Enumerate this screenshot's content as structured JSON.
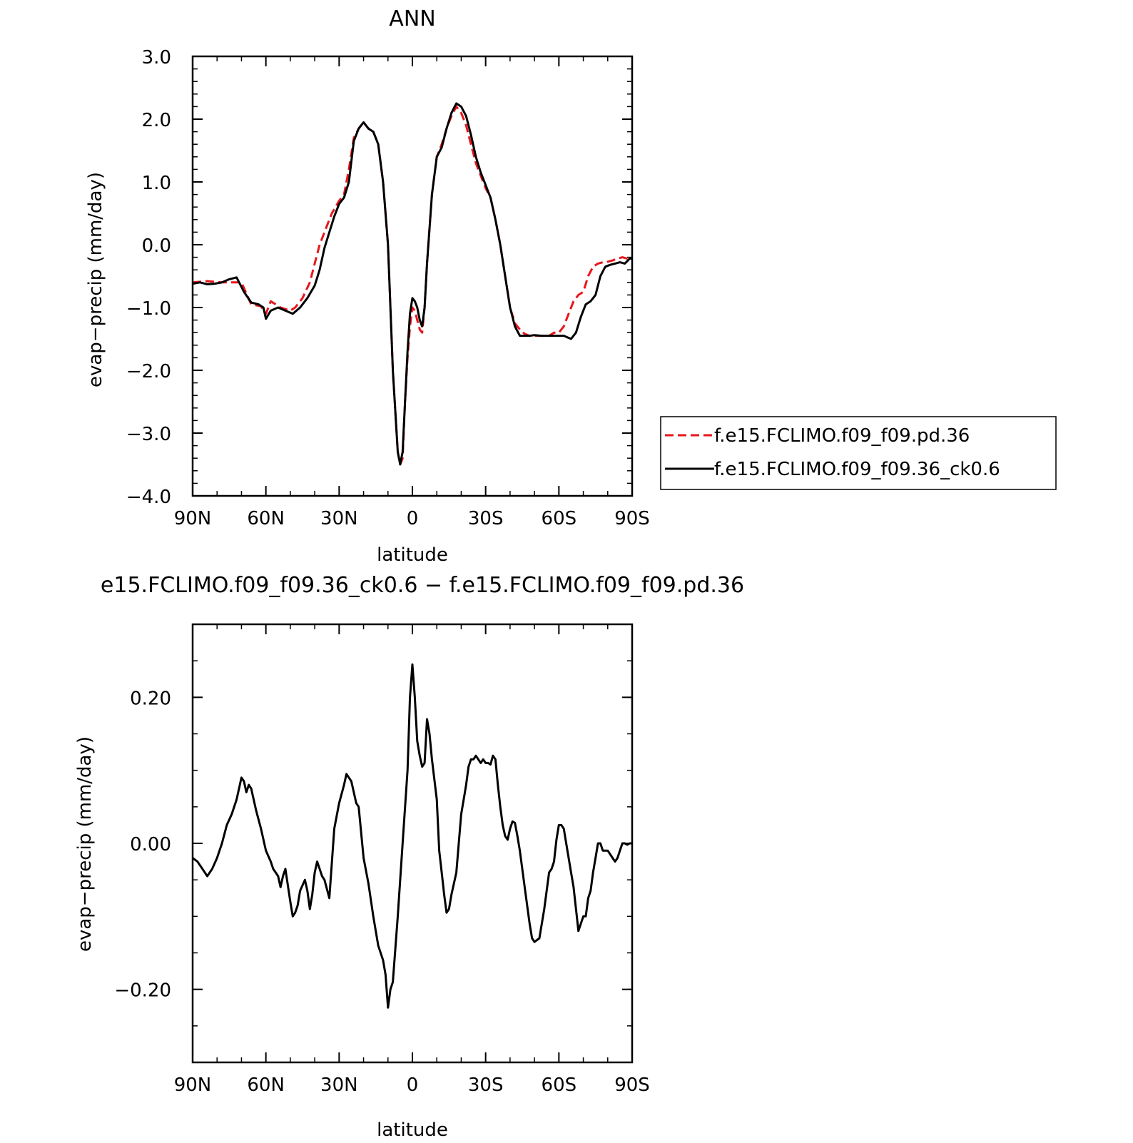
{
  "chart_data": [
    {
      "type": "line",
      "title": "ANN",
      "xlabel": "latitude",
      "ylabel": "evap−precip (mm/day)",
      "xlim": [
        90,
        -90
      ],
      "ylim": [
        -4.0,
        3.0
      ],
      "x_ticks": [
        90,
        60,
        30,
        0,
        -30,
        -60,
        -90
      ],
      "x_tick_labels": [
        "90N",
        "60N",
        "30N",
        "0",
        "30S",
        "60S",
        "90S"
      ],
      "y_ticks": [
        3.0,
        2.0,
        1.0,
        0.0,
        -1.0,
        -2.0,
        -3.0,
        -4.0
      ],
      "y_tick_labels": [
        "3.0",
        "2.0",
        "1.0",
        "0.0",
        "−1.0",
        "−2.0",
        "−3.0",
        "−4.0"
      ],
      "grid": false,
      "legend": "right",
      "series": [
        {
          "name": "f.e15.FCLIMO.f09_f09.pd.36",
          "color": "#e8161b",
          "dash": "dashed",
          "x": [
            90,
            84,
            78,
            70,
            66,
            62,
            60,
            58,
            54,
            50,
            48,
            45,
            42,
            40,
            38,
            35,
            33,
            30,
            28,
            26,
            24,
            22,
            20,
            18,
            16,
            14,
            12,
            10,
            8,
            6,
            5,
            4,
            3,
            2,
            1,
            0,
            -1,
            -2,
            -3,
            -4,
            -5,
            -6,
            -8,
            -10,
            -12,
            -14,
            -16,
            -18,
            -20,
            -22,
            -24,
            -26,
            -28,
            -30,
            -32,
            -34,
            -36,
            -38,
            -40,
            -42,
            -44,
            -46,
            -48,
            -50,
            -53,
            -56,
            -58,
            -60,
            -62,
            -64,
            -66,
            -68,
            -70,
            -72,
            -74,
            -76,
            -78,
            -80,
            -82,
            -84,
            -86,
            -88,
            -90
          ],
          "y": [
            -0.6,
            -0.58,
            -0.6,
            -0.6,
            -0.95,
            -0.98,
            -1.1,
            -0.9,
            -1.0,
            -1.05,
            -1.0,
            -0.85,
            -0.6,
            -0.3,
            0.0,
            0.3,
            0.5,
            0.7,
            0.8,
            1.2,
            1.7,
            1.85,
            1.95,
            1.85,
            1.8,
            1.6,
            1.0,
            0.0,
            -2.0,
            -3.3,
            -3.5,
            -3.4,
            -2.5,
            -1.8,
            -1.3,
            -1.0,
            -1.05,
            -1.2,
            -1.35,
            -1.4,
            -1.0,
            -0.3,
            0.8,
            1.4,
            1.6,
            1.85,
            2.05,
            2.2,
            2.1,
            1.9,
            1.6,
            1.3,
            1.1,
            0.9,
            0.75,
            0.4,
            0.0,
            -0.5,
            -1.0,
            -1.25,
            -1.35,
            -1.42,
            -1.45,
            -1.45,
            -1.45,
            -1.45,
            -1.4,
            -1.4,
            -1.3,
            -1.1,
            -0.9,
            -0.8,
            -0.75,
            -0.5,
            -0.35,
            -0.3,
            -0.28,
            -0.27,
            -0.25,
            -0.22,
            -0.2,
            -0.22,
            -0.22
          ]
        },
        {
          "name": "f.e15.FCLIMO.f09_f09.36_ck0.6",
          "color": "#000000",
          "dash": "solid",
          "x": [
            90,
            87,
            84,
            81,
            78,
            75,
            72,
            69,
            66,
            63,
            61,
            60,
            58,
            55,
            52,
            49,
            46,
            43,
            40,
            38,
            36,
            34,
            32,
            30,
            28,
            26,
            24,
            22,
            20,
            18,
            16,
            14,
            12,
            10,
            8,
            6,
            5,
            4,
            3,
            2,
            1,
            0,
            -1,
            -2,
            -3,
            -4,
            -5,
            -6,
            -8,
            -10,
            -12,
            -14,
            -16,
            -18,
            -20,
            -22,
            -24,
            -26,
            -28,
            -30,
            -32,
            -34,
            -36,
            -38,
            -40,
            -42,
            -44,
            -46,
            -48,
            -50,
            -53,
            -56,
            -59,
            -62,
            -65,
            -67,
            -69,
            -71,
            -73,
            -75,
            -77,
            -79,
            -81,
            -83,
            -85,
            -87,
            -89,
            -90
          ],
          "y": [
            -0.62,
            -0.6,
            -0.63,
            -0.62,
            -0.6,
            -0.55,
            -0.52,
            -0.75,
            -0.92,
            -0.95,
            -1.0,
            -1.18,
            -1.05,
            -1.0,
            -1.05,
            -1.1,
            -1.0,
            -0.85,
            -0.65,
            -0.4,
            -0.05,
            0.2,
            0.45,
            0.65,
            0.75,
            1.0,
            1.65,
            1.85,
            1.95,
            1.85,
            1.8,
            1.6,
            1.0,
            0.0,
            -2.0,
            -3.3,
            -3.5,
            -3.3,
            -2.5,
            -1.7,
            -1.1,
            -0.85,
            -0.9,
            -1.0,
            -1.2,
            -1.3,
            -1.0,
            -0.3,
            0.8,
            1.4,
            1.55,
            1.85,
            2.1,
            2.25,
            2.2,
            2.05,
            1.75,
            1.4,
            1.15,
            0.95,
            0.75,
            0.4,
            0.0,
            -0.5,
            -1.0,
            -1.3,
            -1.45,
            -1.45,
            -1.45,
            -1.44,
            -1.45,
            -1.45,
            -1.45,
            -1.45,
            -1.5,
            -1.4,
            -1.15,
            -0.95,
            -0.9,
            -0.8,
            -0.5,
            -0.35,
            -0.32,
            -0.3,
            -0.28,
            -0.3,
            -0.22,
            -0.22
          ]
        }
      ]
    },
    {
      "type": "line",
      "title": "e15.FCLIMO.f09_f09.36_ck0.6 − f.e15.FCLIMO.f09_f09.pd.36",
      "xlabel": "latitude",
      "ylabel": "evap−precip (mm/day)",
      "xlim": [
        90,
        -90
      ],
      "ylim": [
        -0.3,
        0.3
      ],
      "x_ticks": [
        90,
        60,
        30,
        0,
        -30,
        -60,
        -90
      ],
      "x_tick_labels": [
        "90N",
        "60N",
        "30N",
        "0",
        "30S",
        "60S",
        "90S"
      ],
      "y_ticks": [
        0.2,
        0.0,
        -0.2
      ],
      "y_tick_labels": [
        "0.20",
        "0.00",
        "−0.20"
      ],
      "grid": false,
      "series": [
        {
          "color": "#000000",
          "dash": "solid",
          "x": [
            90,
            88,
            86,
            84,
            82,
            80,
            78,
            76,
            74,
            72,
            71,
            70,
            69,
            68,
            67,
            66,
            64,
            62,
            60,
            58,
            57,
            56,
            55,
            54,
            53,
            52,
            50,
            49,
            48,
            47,
            46,
            44,
            43,
            42,
            41,
            40,
            39,
            38,
            37,
            36,
            34,
            32,
            30,
            28,
            27,
            26,
            25,
            24,
            23,
            22,
            20,
            18,
            16,
            14,
            12,
            11,
            10,
            9,
            8,
            6,
            4,
            2,
            1,
            0,
            -1,
            -2,
            -3,
            -4,
            -5,
            -6,
            -7,
            -8,
            -10,
            -11,
            -12,
            -13,
            -14,
            -15,
            -16,
            -17,
            -18,
            -19,
            -20,
            -21,
            -22,
            -23,
            -24,
            -25,
            -26,
            -27,
            -28,
            -29,
            -30,
            -31,
            -32,
            -33,
            -34,
            -35,
            -36,
            -37,
            -38,
            -39,
            -40,
            -41,
            -42,
            -43,
            -44,
            -46,
            -48,
            -49,
            -50,
            -52,
            -54,
            -55,
            -56,
            -57,
            -58,
            -59,
            -60,
            -61,
            -62,
            -63,
            -64,
            -65,
            -66,
            -67,
            -68,
            -69,
            -70,
            -71,
            -72,
            -73,
            -74,
            -75,
            -76,
            -77,
            -78,
            -79,
            -80,
            -81,
            -82,
            -83,
            -84,
            -85,
            -86,
            -87,
            -88,
            -89,
            -90
          ],
          "y": [
            -0.02,
            -0.025,
            -0.035,
            -0.045,
            -0.035,
            -0.02,
            0.0,
            0.025,
            0.04,
            0.06,
            0.075,
            0.09,
            0.085,
            0.07,
            0.08,
            0.075,
            0.045,
            0.02,
            -0.01,
            -0.025,
            -0.035,
            -0.04,
            -0.045,
            -0.06,
            -0.045,
            -0.035,
            -0.08,
            -0.1,
            -0.095,
            -0.085,
            -0.065,
            -0.05,
            -0.065,
            -0.09,
            -0.07,
            -0.04,
            -0.025,
            -0.035,
            -0.045,
            -0.05,
            -0.075,
            0.02,
            0.055,
            0.08,
            0.095,
            0.09,
            0.085,
            0.07,
            0.055,
            0.05,
            -0.02,
            -0.055,
            -0.1,
            -0.14,
            -0.16,
            -0.18,
            -0.225,
            -0.2,
            -0.19,
            -0.1,
            0.0,
            0.1,
            0.2,
            0.245,
            0.2,
            0.14,
            0.12,
            0.105,
            0.11,
            0.17,
            0.15,
            0.115,
            0.06,
            -0.01,
            -0.04,
            -0.07,
            -0.095,
            -0.09,
            -0.07,
            -0.055,
            -0.04,
            0.0,
            0.04,
            0.06,
            0.08,
            0.105,
            0.115,
            0.115,
            0.12,
            0.115,
            0.11,
            0.115,
            0.11,
            0.11,
            0.108,
            0.12,
            0.115,
            0.08,
            0.05,
            0.025,
            0.01,
            0.005,
            0.02,
            0.03,
            0.028,
            0.01,
            -0.01,
            -0.06,
            -0.11,
            -0.13,
            -0.135,
            -0.13,
            -0.09,
            -0.065,
            -0.04,
            -0.035,
            -0.025,
            0.005,
            0.025,
            0.025,
            0.02,
            0.0,
            -0.02,
            -0.04,
            -0.06,
            -0.09,
            -0.12,
            -0.11,
            -0.1,
            -0.1,
            -0.075,
            -0.065,
            -0.04,
            -0.02,
            0.0,
            0.0,
            -0.01,
            -0.01,
            -0.01,
            -0.015,
            -0.02,
            -0.025,
            -0.02,
            -0.01,
            0.0,
            0.0,
            -0.002,
            0.0,
            0.0
          ]
        }
      ]
    }
  ]
}
